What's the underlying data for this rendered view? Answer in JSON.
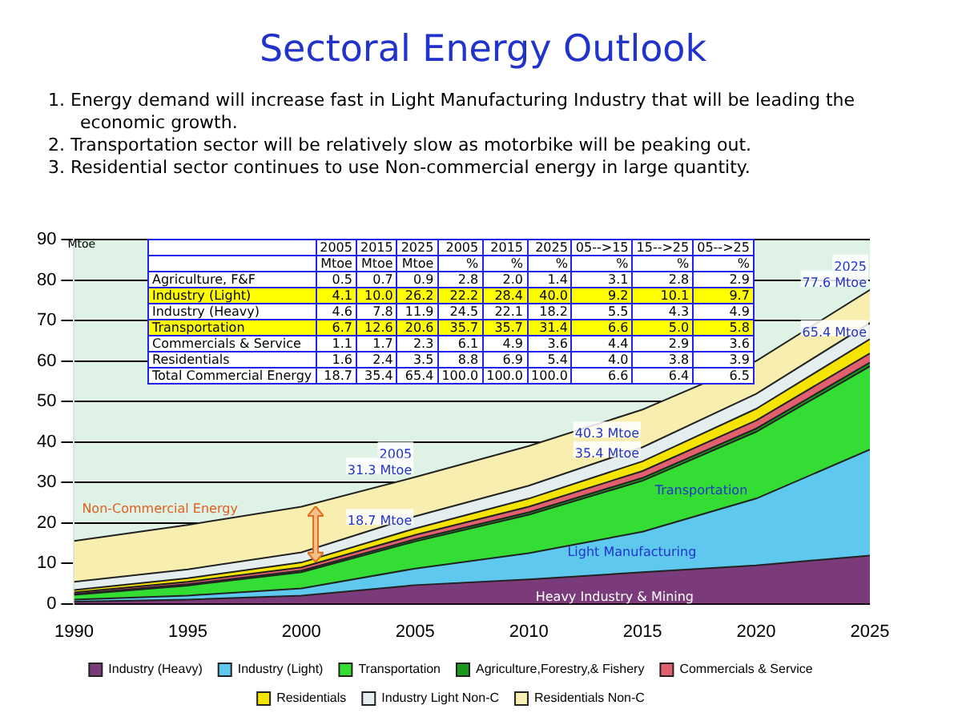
{
  "chart_data": {
    "type": "area",
    "stacked": true,
    "title": "Sectoral Energy Outlook",
    "subtitle": "1. Energy demand will increase fast in Light Manufacturing Industry that will be leading the economic growth.\n2. Transportation sector will be relatively slow as motorbike will be peaking out.\n3. Residential sector continues to use Non-commercial energy in large quantity.",
    "ylabel": "Mtoe",
    "x": [
      1990,
      1995,
      2000,
      2005,
      2010,
      2015,
      2020,
      2025
    ],
    "xlim": [
      1990,
      2025
    ],
    "xticks": [
      1990,
      1995,
      2000,
      2005,
      2010,
      2015,
      2020,
      2025
    ],
    "ylim": [
      0,
      90
    ],
    "yticks": [
      0,
      10,
      20,
      30,
      40,
      50,
      60,
      70,
      80,
      90
    ],
    "grid": "y",
    "legend": "bottom",
    "series": [
      {
        "name": "Industry (Heavy)",
        "color": "#7b3a7a",
        "values": [
          0.5,
          1,
          2,
          4.6,
          6,
          7.8,
          9.5,
          11.9
        ]
      },
      {
        "name": "Industry (Light)",
        "color": "#5fc8ee",
        "values": [
          0.5,
          1,
          1.8,
          4.1,
          6.5,
          10.0,
          16.5,
          26.2
        ]
      },
      {
        "name": "Transportation",
        "color": "#33dd33",
        "values": [
          1.2,
          2.5,
          4,
          6.7,
          9.5,
          12.6,
          16.5,
          20.6
        ]
      },
      {
        "name": "Agriculture,Forestry,& Fishery",
        "color": "#1a9a1a",
        "values": [
          0.2,
          0.3,
          0.4,
          0.5,
          0.6,
          0.7,
          0.8,
          0.9
        ]
      },
      {
        "name": "Commercials & Service",
        "color": "#e06070",
        "values": [
          0.4,
          0.6,
          0.8,
          1.1,
          1.4,
          1.7,
          2.0,
          2.3
        ]
      },
      {
        "name": "Residentials",
        "color": "#f5e400",
        "values": [
          0.6,
          0.9,
          1.2,
          1.6,
          2.0,
          2.4,
          2.9,
          3.5
        ]
      },
      {
        "name": "Industry Light Non-C",
        "color": "#e4eeee",
        "values": [
          2,
          2.2,
          2.5,
          3,
          3.2,
          3.5,
          3.7,
          4
        ]
      },
      {
        "name": "Residentials Non-C",
        "color": "#f8eeb0",
        "values": [
          10.1,
          11,
          11.3,
          9.7,
          9.8,
          9.3,
          8.1,
          8.2
        ]
      }
    ],
    "annotations": [
      {
        "text": "2025\n77.6 Mtoe",
        "x": 2025,
        "y": 77.6
      },
      {
        "text": "65.4 Mtoe",
        "x": 2025,
        "y": 65.4
      },
      {
        "text": "40.3 Mtoe",
        "x": 2015,
        "y": 40.3
      },
      {
        "text": "35.4 Mtoe",
        "x": 2015,
        "y": 35.4
      },
      {
        "text": "2005\n31.3 Mtoe",
        "x": 2005,
        "y": 31.3
      },
      {
        "text": "18.7 Mtoe",
        "x": 2005,
        "y": 18.7
      },
      "Non-Commercial Energy",
      "Transportation",
      "Light Manufacturing",
      "Heavy Industry & Mining",
      "2005",
      "2015",
      "2025",
      "2005",
      "2015",
      "2025",
      "05-->15",
      "15-->25",
      "05-->25",
      "Mtoe",
      "Mtoe",
      "Mtoe",
      "%",
      "%",
      "%",
      "%",
      "%",
      "%",
      "Agriculture, F&F",
      "0.5",
      "0.7",
      "0.9",
      "2.8",
      "2.0",
      "1.4",
      "3.1",
      "2.8",
      "2.9",
      "Industry (Light)",
      "4.1",
      "10.0",
      "26.2",
      "22.2",
      "28.4",
      "40.0",
      "9.2",
      "10.1",
      "9.7",
      "Industry (Heavy)",
      "4.6",
      "7.8",
      "11.9",
      "24.5",
      "22.1",
      "18.2",
      "5.5",
      "4.3",
      "4.9",
      "Transportation",
      "6.7",
      "12.6",
      "20.6",
      "35.7",
      "35.7",
      "31.4",
      "6.6",
      "5.0",
      "5.8",
      "Commercials & Service",
      "1.1",
      "1.7",
      "2.3",
      "6.1",
      "4.9",
      "3.6",
      "4.4",
      "2.9",
      "3.6",
      "Residentials",
      "1.6",
      "2.4",
      "3.5",
      "8.8",
      "6.9",
      "5.4",
      "4.0",
      "3.8",
      "3.9",
      "Total Commercial Energy",
      "18.7",
      "35.4",
      "65.4",
      "100.0",
      "100.0",
      "100.0",
      "6.6",
      "6.4",
      "6.5"
    ]
  }
}
